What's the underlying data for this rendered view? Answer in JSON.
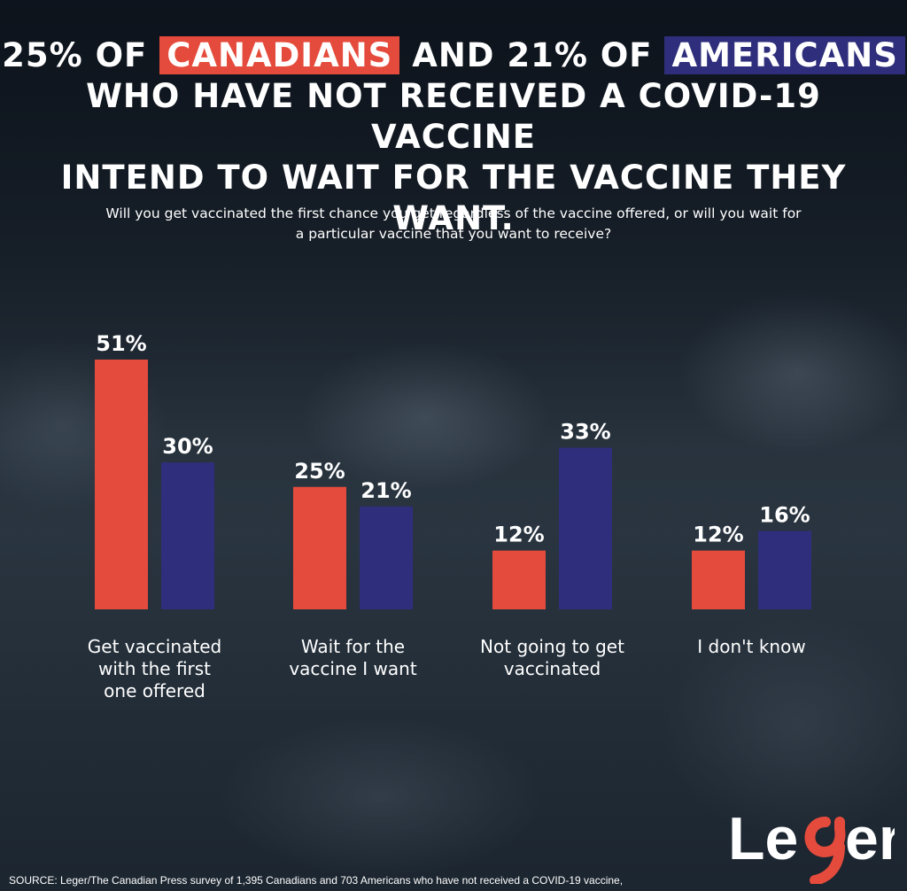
{
  "header": {
    "line1_pre": "25% OF ",
    "line1_hl1": "CANADIANS",
    "line1_mid": " AND 21% OF ",
    "line1_hl2": "AMERICANS",
    "line2": "WHO HAVE NOT RECEIVED A COVID-19 VACCINE",
    "line3": "INTEND TO WAIT FOR THE VACCINE THEY WANT."
  },
  "question_line1": "Will you get vaccinated the first chance you get regardless of the vaccine offered, or will you wait for",
  "question_line2": "a particular vaccine that you want to receive?",
  "chart_data": {
    "type": "bar",
    "categories": [
      "Get vaccinated with the first one offered",
      "Wait for the vaccine I want",
      "Not going to get vaccinated",
      "I don't know"
    ],
    "category_lines": [
      [
        "Get vaccinated",
        "with the first",
        "one offered"
      ],
      [
        "Wait for the",
        "vaccine I want"
      ],
      [
        "Not going to get",
        "vaccinated"
      ],
      [
        "I don't know"
      ]
    ],
    "series": [
      {
        "values": [
          51,
          25,
          12,
          12
        ],
        "labels": [
          "51%",
          "25%",
          "12%",
          "12%"
        ],
        "color": "#e54b3c"
      },
      {
        "values": [
          30,
          21,
          33,
          16
        ],
        "labels": [
          "30%",
          "21%",
          "33%",
          "16%"
        ],
        "color": "#2e2e7c"
      }
    ],
    "ylim": [
      0,
      51
    ]
  },
  "footer": {
    "source": "SOURCE: Leger/The Canadian Press survey of 1,395 Canadians and 703 Americans who have not received a COVID-19 vaccine,",
    "logo_text": "Leger"
  },
  "colors": {
    "canada": "#e54b3c",
    "usa": "#2e2e7c",
    "text": "#ffffff"
  }
}
